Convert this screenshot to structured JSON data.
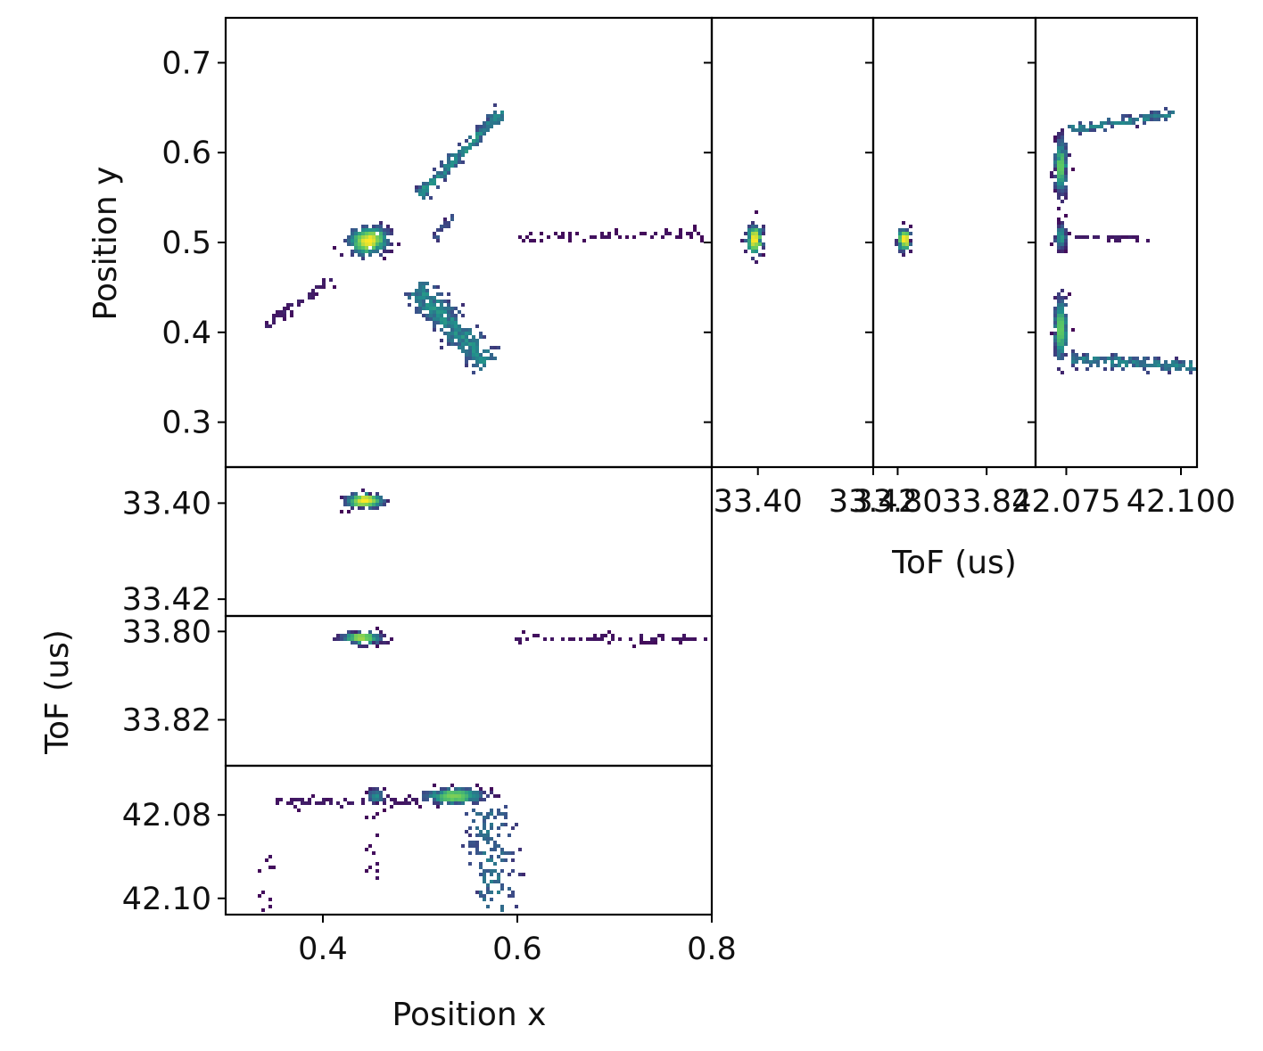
{
  "chart_data": {
    "type": "heatmap",
    "colormap": "viridis",
    "colors": [
      "#440154",
      "#3b528b",
      "#21918c",
      "#5ec962",
      "#fde725"
    ],
    "panels": [
      {
        "id": "xy",
        "xlabel": "",
        "ylabel": "Position y",
        "xlim": [
          0.3,
          0.8
        ],
        "ylim": [
          0.25,
          0.75
        ],
        "yticks": [
          0.7,
          0.6,
          0.5,
          0.4,
          0.3
        ],
        "ytick_labels": [
          "0.7",
          "0.6",
          "0.5",
          "0.4",
          "0.3"
        ],
        "features": [
          {
            "shape": "blob",
            "cx": 0.447,
            "cy": 0.502,
            "rx": 0.02,
            "ry": 0.015,
            "angle": 12,
            "peak": 1.0,
            "count": 260
          },
          {
            "shape": "streak",
            "x0": 0.5,
            "y0": 0.553,
            "x1": 0.585,
            "y1": 0.645,
            "width": 0.006,
            "peak": 0.55,
            "count": 200
          },
          {
            "shape": "streak",
            "x0": 0.495,
            "y0": 0.45,
            "x1": 0.57,
            "y1": 0.365,
            "width": 0.014,
            "peak": 0.55,
            "count": 320
          },
          {
            "shape": "streak",
            "x0": 0.515,
            "y0": 0.505,
            "x1": 0.535,
            "y1": 0.53,
            "width": 0.003,
            "peak": 0.3,
            "count": 25
          },
          {
            "shape": "streak",
            "x0": 0.34,
            "y0": 0.405,
            "x1": 0.41,
            "y1": 0.46,
            "width": 0.005,
            "peak": 0.12,
            "count": 45
          },
          {
            "shape": "streak",
            "x0": 0.6,
            "y0": 0.505,
            "x1": 0.795,
            "y1": 0.51,
            "width": 0.004,
            "peak": 0.06,
            "count": 60
          }
        ]
      },
      {
        "id": "tof1-y",
        "xlabel": "",
        "ylabel": "",
        "xlim": [
          33.392,
          33.42
        ],
        "ylim": [
          0.25,
          0.75
        ],
        "xticks": [
          33.4,
          33.42
        ],
        "xtick_labels": [
          "33.40",
          "33.42"
        ],
        "features": [
          {
            "shape": "blob",
            "cx": 33.3995,
            "cy": 0.503,
            "rx": 0.0013,
            "ry": 0.016,
            "angle": 0,
            "peak": 1.0,
            "count": 140
          }
        ]
      },
      {
        "id": "tof2-y",
        "xlabel": "ToF (us)",
        "ylabel": "",
        "xlim": [
          33.7945,
          33.831
        ],
        "ylim": [
          0.25,
          0.75
        ],
        "xticks": [
          33.8,
          33.82
        ],
        "xtick_labels": [
          "33.80",
          "33.82"
        ],
        "features": [
          {
            "shape": "blob",
            "cx": 33.8015,
            "cy": 0.503,
            "rx": 0.0012,
            "ry": 0.011,
            "angle": 0,
            "peak": 1.0,
            "count": 110
          }
        ]
      },
      {
        "id": "tof3-y",
        "xlabel": "",
        "ylabel": "",
        "xlim": [
          42.0683,
          42.1035
        ],
        "ylim": [
          0.25,
          0.75
        ],
        "xticks": [
          42.075,
          42.1
        ],
        "xtick_labels": [
          "42.075",
          "42.100"
        ],
        "features": [
          {
            "shape": "blob",
            "cx": 42.0738,
            "cy": 0.585,
            "rx": 0.0012,
            "ry": 0.03,
            "angle": 0,
            "peak": 0.75,
            "count": 220
          },
          {
            "shape": "blob",
            "cx": 42.0738,
            "cy": 0.403,
            "rx": 0.0012,
            "ry": 0.035,
            "angle": 0,
            "peak": 0.75,
            "count": 240
          },
          {
            "shape": "blob",
            "cx": 42.0738,
            "cy": 0.506,
            "rx": 0.0011,
            "ry": 0.013,
            "angle": 0,
            "peak": 0.55,
            "count": 80
          },
          {
            "shape": "streak",
            "x0": 42.076,
            "y0": 0.625,
            "x1": 42.098,
            "y1": 0.643,
            "width": 0.004,
            "peak": 0.5,
            "count": 110
          },
          {
            "shape": "streak",
            "x0": 42.076,
            "y0": 0.37,
            "x1": 42.103,
            "y1": 0.362,
            "width": 0.006,
            "peak": 0.5,
            "count": 160
          },
          {
            "shape": "streak",
            "x0": 42.076,
            "y0": 0.505,
            "x1": 42.095,
            "y1": 0.505,
            "width": 0.003,
            "peak": 0.1,
            "count": 30
          }
        ]
      },
      {
        "id": "x-tof1",
        "xlabel": "",
        "ylabel": "",
        "xlim": [
          0.3,
          0.8
        ],
        "ylim": [
          33.4235,
          33.3925
        ],
        "yticks": [
          33.4,
          33.42
        ],
        "ytick_labels": [
          "33.40",
          "33.42"
        ],
        "features": [
          {
            "shape": "blob",
            "cx": 0.443,
            "cy": 33.3995,
            "rx": 0.018,
            "ry": 0.0013,
            "angle": 0,
            "peak": 1.0,
            "count": 180
          }
        ]
      },
      {
        "id": "x-tof2",
        "xlabel": "",
        "ylabel": "ToF (us)",
        "xlim": [
          0.3,
          0.8
        ],
        "ylim": [
          33.8304,
          33.7965
        ],
        "yticks": [
          33.8,
          33.82
        ],
        "ytick_labels": [
          "33.80",
          "33.82"
        ],
        "features": [
          {
            "shape": "blob",
            "cx": 0.44,
            "cy": 33.8015,
            "rx": 0.02,
            "ry": 0.0012,
            "angle": 0,
            "peak": 0.85,
            "count": 140
          },
          {
            "shape": "streak",
            "x0": 0.6,
            "y0": 33.8015,
            "x1": 0.795,
            "y1": 33.8015,
            "width": 0.0009,
            "peak": 0.08,
            "count": 60
          }
        ]
      },
      {
        "id": "x-tof3",
        "xlabel": "Position x",
        "ylabel": "",
        "xlim": [
          0.3,
          0.8
        ],
        "ylim": [
          42.1039,
          42.0682
        ],
        "xticks": [
          0.4,
          0.6,
          0.8
        ],
        "xtick_labels": [
          "0.4",
          "0.6",
          "0.8"
        ],
        "yticks": [
          42.08,
          42.1
        ],
        "ytick_labels": [
          "42.08",
          "42.10"
        ],
        "features": [
          {
            "shape": "blob",
            "cx": 0.455,
            "cy": 42.0755,
            "rx": 0.008,
            "ry": 0.0015,
            "angle": 0,
            "peak": 0.5,
            "count": 60
          },
          {
            "shape": "blob",
            "cx": 0.535,
            "cy": 42.0755,
            "rx": 0.03,
            "ry": 0.0017,
            "angle": 0,
            "peak": 0.8,
            "count": 220
          },
          {
            "shape": "streak",
            "x0": 0.57,
            "y0": 42.078,
            "x1": 0.577,
            "y1": 42.103,
            "width": 0.005,
            "peak": 0.45,
            "count": 130
          },
          {
            "shape": "streak",
            "x0": 0.35,
            "y0": 42.077,
            "x1": 0.49,
            "y1": 42.077,
            "width": 0.001,
            "peak": 0.1,
            "count": 50
          },
          {
            "shape": "streak",
            "x0": 0.345,
            "y0": 42.086,
            "x1": 0.345,
            "y1": 42.103,
            "width": 0.002,
            "peak": 0.05,
            "count": 10
          },
          {
            "shape": "streak",
            "x0": 0.45,
            "y0": 42.078,
            "x1": 0.455,
            "y1": 42.1,
            "width": 0.002,
            "peak": 0.06,
            "count": 12
          }
        ]
      }
    ]
  }
}
